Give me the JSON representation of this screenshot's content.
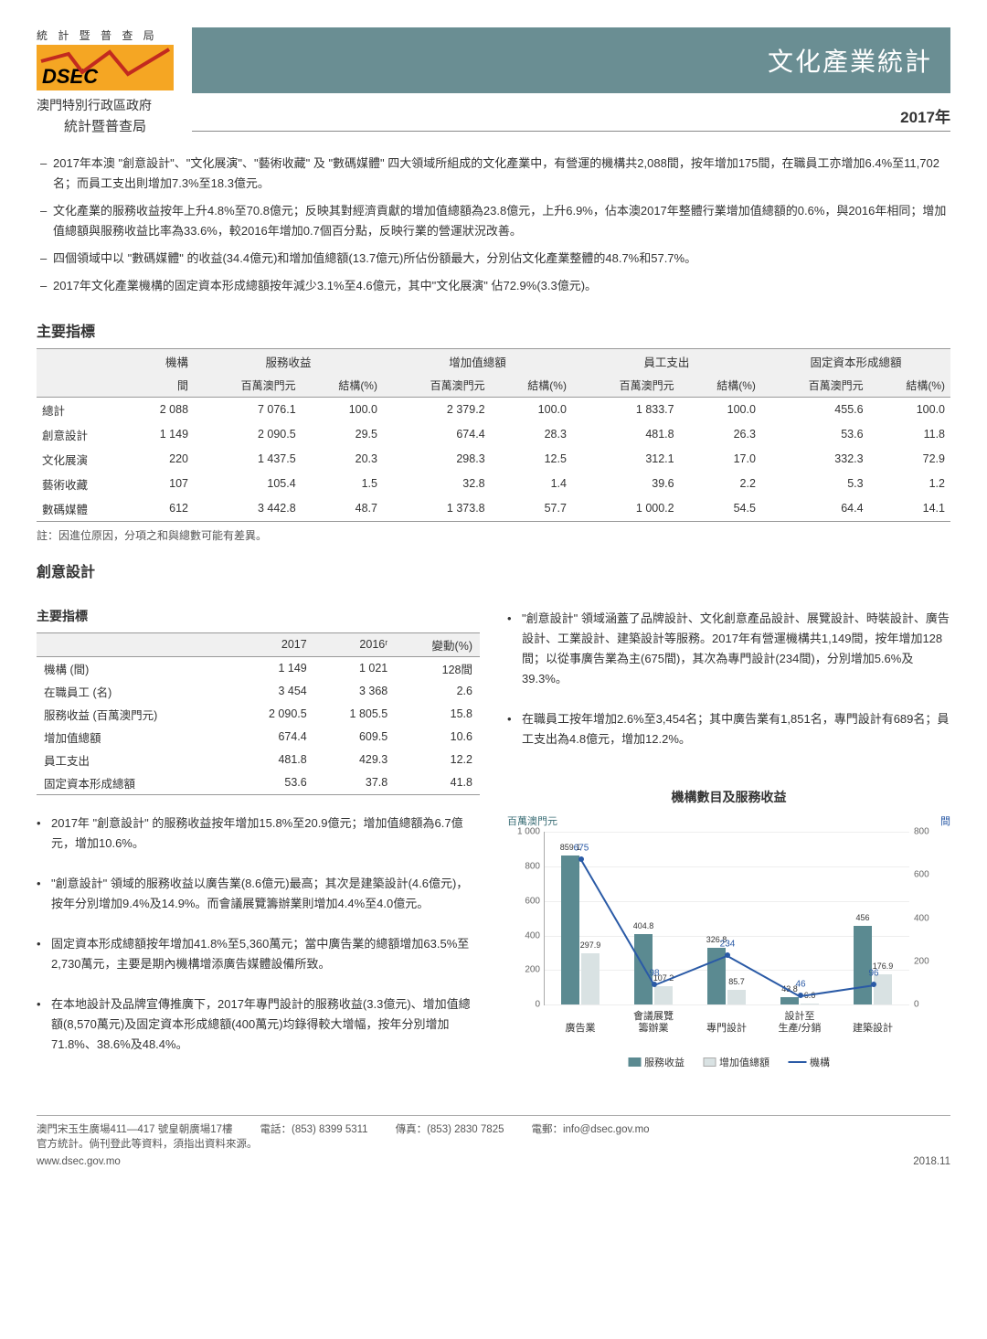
{
  "header": {
    "bureau_top": "統 計 暨 普 查 局",
    "logo_text": "DSEC",
    "gov_line1": "澳門特別行政區政府",
    "gov_line2": "統計暨普查局",
    "title": "文化產業統計",
    "year": "2017年"
  },
  "summary_bullets": [
    "2017年本澳 \"創意設計\"、\"文化展演\"、\"藝術收藏\" 及 \"數碼媒體\" 四大領域所組成的文化產業中，有營運的機構共2,088間，按年增加175間，在職員工亦增加6.4%至11,702名；而員工支出則增加7.3%至18.3億元。",
    "文化產業的服務收益按年上升4.8%至70.8億元；反映其對經濟貢獻的增加值總額為23.8億元，上升6.9%，佔本澳2017年整體行業增加值總額的0.6%，與2016年相同；增加值總額與服務收益比率為33.6%，較2016年增加0.7個百分點，反映行業的營運狀況改善。",
    "四個領域中以 \"數碼媒體\" 的收益(34.4億元)和增加值總額(13.7億元)所佔份額最大，分別佔文化產業整體的48.7%和57.7%。",
    "2017年文化產業機構的固定資本形成總額按年減少3.1%至4.6億元，其中\"文化展演\" 佔72.9%(3.3億元)。"
  ],
  "main_table": {
    "title": "主要指標",
    "headers1": [
      "",
      "機構",
      "服務收益",
      "",
      "增加值總額",
      "",
      "員工支出",
      "",
      "固定資本形成總額",
      ""
    ],
    "headers2": [
      "",
      "間",
      "百萬澳門元",
      "結構(%)",
      "百萬澳門元",
      "結構(%)",
      "百萬澳門元",
      "結構(%)",
      "百萬澳門元",
      "結構(%)"
    ],
    "rows": [
      [
        "總計",
        "2 088",
        "7 076.1",
        "100.0",
        "2 379.2",
        "100.0",
        "1 833.7",
        "100.0",
        "455.6",
        "100.0"
      ],
      [
        "創意設計",
        "1 149",
        "2 090.5",
        "29.5",
        "674.4",
        "28.3",
        "481.8",
        "26.3",
        "53.6",
        "11.8"
      ],
      [
        "文化展演",
        "220",
        "1 437.5",
        "20.3",
        "298.3",
        "12.5",
        "312.1",
        "17.0",
        "332.3",
        "72.9"
      ],
      [
        "藝術收藏",
        "107",
        "105.4",
        "1.5",
        "32.8",
        "1.4",
        "39.6",
        "2.2",
        "5.3",
        "1.2"
      ],
      [
        "數碼媒體",
        "612",
        "3 442.8",
        "48.7",
        "1 373.8",
        "57.7",
        "1 000.2",
        "54.5",
        "64.4",
        "14.1"
      ]
    ],
    "note": "註：因進位原因，分項之和與總數可能有差異。"
  },
  "creative": {
    "section": "創意設計",
    "sub_title": "主要指標",
    "headers": [
      "",
      "2017",
      "2016ʳ",
      "變動(%)"
    ],
    "rows": [
      [
        "機構 (間)",
        "1 149",
        "1 021",
        "128間"
      ],
      [
        "在職員工 (名)",
        "3 454",
        "3 368",
        "2.6"
      ],
      [
        "服務收益 (百萬澳門元)",
        "2 090.5",
        "1 805.5",
        "15.8"
      ],
      [
        "增加值總額",
        "674.4",
        "609.5",
        "10.6"
      ],
      [
        "員工支出",
        "481.8",
        "429.3",
        "12.2"
      ],
      [
        "固定資本形成總額",
        "53.6",
        "37.8",
        "41.8"
      ]
    ],
    "left_bullets": [
      "2017年 \"創意設計\" 的服務收益按年增加15.8%至20.9億元；增加值總額為6.7億元，增加10.6%。",
      "\"創意設計\" 領域的服務收益以廣告業(8.6億元)最高；其次是建築設計(4.6億元)，按年分別增加9.4%及14.9%。而會議展覽籌辦業則增加4.4%至4.0億元。",
      "固定資本形成總額按年增加41.8%至5,360萬元；當中廣告業的總額增加63.5%至2,730萬元，主要是期內機構增添廣告媒體設備所致。",
      "在本地設計及品牌宣傳推廣下，2017年專門設計的服務收益(3.3億元)、增加值總額(8,570萬元)及固定資本形成總額(400萬元)均錄得較大增幅，按年分別增加71.8%、38.6%及48.4%。"
    ],
    "right_bullets": [
      "\"創意設計\" 領域涵蓋了品牌設計、文化創意產品設計、展覽設計、時裝設計、廣告設計、工業設計、建築設計等服務。2017年有營運機構共1,149間，按年增加128間；以從事廣告業為主(675間)，其次為專門設計(234間)，分別增加5.6%及39.3%。",
      "在職員工按年增加2.6%至3,454名；其中廣告業有1,851名，專門設計有689名；員工支出為4.8億元，增加12.2%。"
    ]
  },
  "chart": {
    "title": "機構數目及服務收益",
    "ylabel_left": "百萬澳門元",
    "ylabel_right": "間",
    "left_max": 1000,
    "left_step": 200,
    "right_max": 800,
    "right_step": 200,
    "categories": [
      "廣告業",
      "會議展覽\n籌辦業",
      "專門設計",
      "設計至\n生產/分銷",
      "建築設計"
    ],
    "series": {
      "revenue": {
        "label": "服務收益",
        "color": "#5b8a91",
        "values": [
          859.1,
          404.8,
          326.8,
          43.8,
          456.0
        ]
      },
      "value_added": {
        "label": "增加值總額",
        "color": "#d9e2e3",
        "values": [
          297.9,
          107.2,
          85.7,
          6.6,
          176.9
        ]
      },
      "establishments": {
        "label": "機構",
        "color": "#2a5aa6",
        "values": [
          675,
          98,
          234,
          46,
          96
        ]
      }
    }
  },
  "footer": {
    "address": "澳門宋玉生廣場411—417 號皇朝廣場17樓",
    "tel_label": "電話：",
    "tel": "(853) 8399 5311",
    "fax_label": "傳真：",
    "fax": "(853) 2830 7825",
    "email_label": "電郵：",
    "email": "info@dsec.gov.mo",
    "official": "官方統計。倘刊登此等資料，須指出資料來源。",
    "website": "www.dsec.gov.mo",
    "date": "2018.11"
  },
  "colors": {
    "header_bar": "#6a8e93",
    "logo_bg": "#f5a623",
    "logo_line": "#c22a1f"
  }
}
